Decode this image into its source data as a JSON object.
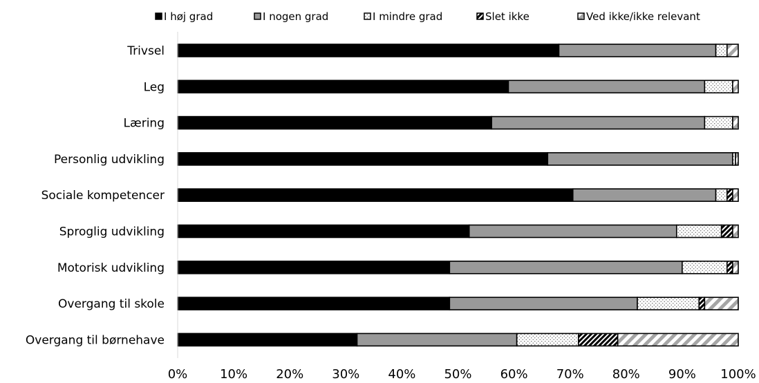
{
  "chart_data": {
    "type": "bar",
    "orientation": "horizontal",
    "stacked": true,
    "percent_stacked": true,
    "title": "",
    "xlabel": "",
    "ylabel": "",
    "xlim": [
      0,
      100
    ],
    "x_ticks": [
      "0%",
      "10%",
      "20%",
      "30%",
      "40%",
      "50%",
      "60%",
      "70%",
      "80%",
      "90%",
      "100%"
    ],
    "grid": false,
    "legend_position": "top",
    "categories": [
      "Trivsel",
      "Leg",
      "Læring",
      "Personlig udvikling",
      "Sociale kompetencer",
      "Sproglig udvikling",
      "Motorisk udvikling",
      "Overgang til skole",
      "Overgang til børnehave"
    ],
    "series": [
      {
        "name": "I høj grad",
        "pattern": "solid-black",
        "values": [
          68,
          59,
          56,
          66,
          70.5,
          52,
          48.5,
          48.5,
          32
        ]
      },
      {
        "name": "I nogen grad",
        "pattern": "solid-gray",
        "values": [
          28,
          35,
          38,
          33,
          25.5,
          37,
          41.5,
          33.5,
          28.5
        ]
      },
      {
        "name": "I mindre grad",
        "pattern": "dotted",
        "values": [
          2,
          5,
          5,
          0.5,
          2,
          8,
          8,
          11,
          11
        ]
      },
      {
        "name": "Slet ikke",
        "pattern": "cross-hatch",
        "values": [
          0,
          0,
          0,
          0,
          1,
          2,
          1,
          1,
          7
        ]
      },
      {
        "name": "Ved ikke/ikke relevant",
        "pattern": "diagonal-stripes",
        "values": [
          2,
          1,
          1,
          0.5,
          1,
          1,
          1,
          6,
          21.5
        ]
      }
    ],
    "colors": {
      "high": "#000000",
      "some": "#999999",
      "axis": "#d9d9d9",
      "stripe": "#a6a6a6"
    }
  }
}
